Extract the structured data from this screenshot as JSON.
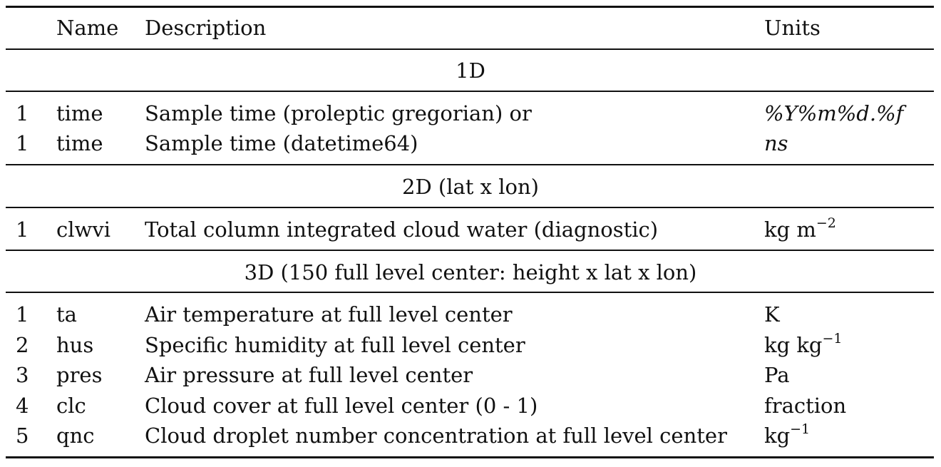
{
  "header": {
    "idx": "",
    "name": "Name",
    "description": "Description",
    "units": "Units"
  },
  "sections": [
    {
      "title": "1D",
      "rows": [
        {
          "idx": "1",
          "name": "time",
          "description": "Sample time (proleptic gregorian) or",
          "units_base": "%Y%m%d.%f",
          "units_sup": "",
          "units_italic": true
        },
        {
          "idx": "1",
          "name": "time",
          "description": "Sample time (datetime64)",
          "units_base": "ns",
          "units_sup": "",
          "units_italic": true
        }
      ]
    },
    {
      "title": "2D (lat x lon)",
      "rows": [
        {
          "idx": "1",
          "name": "clwvi",
          "description": "Total column integrated cloud water (diagnostic)",
          "units_base": "kg m",
          "units_sup": "−2",
          "units_italic": false
        }
      ]
    },
    {
      "title": "3D (150 full level center: height x lat x lon)",
      "rows": [
        {
          "idx": "1",
          "name": "ta",
          "description": "Air temperature at full level center",
          "units_base": "K",
          "units_sup": "",
          "units_italic": false
        },
        {
          "idx": "2",
          "name": "hus",
          "description": "Specific humidity at full level center",
          "units_base": "kg kg",
          "units_sup": "−1",
          "units_italic": false
        },
        {
          "idx": "3",
          "name": "pres",
          "description": "Air pressure at full level center",
          "units_base": "Pa",
          "units_sup": "",
          "units_italic": false
        },
        {
          "idx": "4",
          "name": "clc",
          "description": "Cloud cover at full level center (0 - 1)",
          "units_base": "fraction",
          "units_sup": "",
          "units_italic": false
        },
        {
          "idx": "5",
          "name": "qnc",
          "description": "Cloud droplet number concentration at full level center",
          "units_base": "kg",
          "units_sup": "−1",
          "units_italic": false
        }
      ]
    }
  ]
}
